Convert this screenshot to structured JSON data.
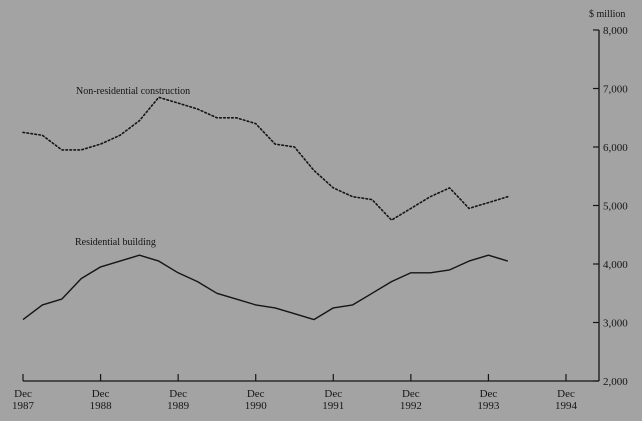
{
  "chart_data": {
    "type": "line",
    "title": "",
    "xlabel": "",
    "ylabel": "",
    "y_unit": "$ million",
    "ylim": [
      2000,
      8000
    ],
    "y_ticks": [
      2000,
      3000,
      4000,
      5000,
      6000,
      7000,
      8000
    ],
    "y_tick_labels": [
      "2,000",
      "3,000",
      "4,000",
      "5,000",
      "6,000",
      "7,000",
      "8,000"
    ],
    "y_axis_position": "right",
    "x_ticks": [
      {
        "date": "1987-12",
        "month": "Dec",
        "year": "1987"
      },
      {
        "date": "1988-12",
        "month": "Dec",
        "year": "1988"
      },
      {
        "date": "1989-12",
        "month": "Dec",
        "year": "1989"
      },
      {
        "date": "1990-12",
        "month": "Dec",
        "year": "1990"
      },
      {
        "date": "1991-12",
        "month": "Dec",
        "year": "1991"
      },
      {
        "date": "1992-12",
        "month": "Dec",
        "year": "1992"
      },
      {
        "date": "1993-12",
        "month": "Dec",
        "year": "1993"
      },
      {
        "date": "1994-12",
        "month": "Dec",
        "year": "1994"
      }
    ],
    "grid": false,
    "legend": "inline labels",
    "series": [
      {
        "name": "Non-residential construction",
        "style": "dotted",
        "x": [
          "1987-12",
          "1988-03",
          "1988-06",
          "1988-09",
          "1988-12",
          "1989-03",
          "1989-06",
          "1989-09",
          "1989-12",
          "1990-03",
          "1990-06",
          "1990-09",
          "1990-12",
          "1991-03",
          "1991-06",
          "1991-09",
          "1991-12",
          "1992-03",
          "1992-06",
          "1992-09",
          "1992-12",
          "1993-03",
          "1993-06",
          "1993-09",
          "1993-12",
          "1994-03"
        ],
        "values": [
          6250,
          6200,
          5950,
          5950,
          6050,
          6200,
          6450,
          6850,
          6750,
          6650,
          6500,
          6500,
          6400,
          6050,
          6000,
          5600,
          5300,
          5150,
          5100,
          4750,
          4950,
          5150,
          5300,
          4950,
          5050,
          5150
        ]
      },
      {
        "name": "Residential building",
        "style": "solid",
        "x": [
          "1987-12",
          "1988-03",
          "1988-06",
          "1988-09",
          "1988-12",
          "1989-03",
          "1989-06",
          "1989-09",
          "1989-12",
          "1990-03",
          "1990-06",
          "1990-09",
          "1990-12",
          "1991-03",
          "1991-06",
          "1991-09",
          "1991-12",
          "1992-03",
          "1992-06",
          "1992-09",
          "1992-12",
          "1993-03",
          "1993-06",
          "1993-09",
          "1993-12",
          "1994-03"
        ],
        "values": [
          3050,
          3300,
          3400,
          3750,
          3950,
          4050,
          4150,
          4050,
          3850,
          3700,
          3500,
          3400,
          3300,
          3250,
          3150,
          3050,
          3250,
          3300,
          3500,
          3700,
          3850,
          3850,
          3900,
          4050,
          4150,
          4050
        ]
      }
    ]
  }
}
